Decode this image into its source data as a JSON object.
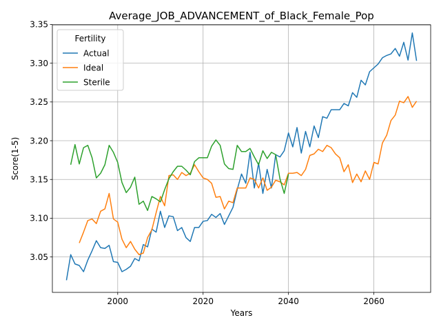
{
  "chart_data": {
    "type": "line",
    "title": "Average_JOB_ADVANCEMENT_of_Black_Female_Pop",
    "xlabel": "Years",
    "ylabel": "Score(1-5)",
    "xlim": [
      1984.7,
      2073.3
    ],
    "ylim": [
      3.0043,
      3.3495
    ],
    "xticks": [
      2000,
      2020,
      2040,
      2060
    ],
    "yticks": [
      3.05,
      3.1,
      3.15,
      3.2,
      3.25,
      3.3,
      3.35
    ],
    "ytick_labels": [
      "3.05",
      "3.10",
      "3.15",
      "3.20",
      "3.25",
      "3.30",
      "3.35"
    ],
    "grid": true,
    "legend": {
      "title": "Fertility",
      "placement": "upper-left"
    },
    "series": [
      {
        "name": "Actual",
        "color": "#1f77b4",
        "x": [
          1988,
          1989,
          1990,
          1991,
          1992,
          1993,
          1994,
          1995,
          1996,
          1997,
          1998,
          1999,
          2000,
          2001,
          2002,
          2003,
          2004,
          2005,
          2006,
          2007,
          2008,
          2009,
          2010,
          2011,
          2012,
          2013,
          2014,
          2015,
          2016,
          2017,
          2018,
          2019,
          2020,
          2021,
          2022,
          2023,
          2024,
          2025,
          2026,
          2027,
          2028,
          2029,
          2030,
          2031,
          2032,
          2033,
          2034,
          2035,
          2036,
          2037,
          2038,
          2039,
          2040,
          2041,
          2042,
          2043,
          2044,
          2045,
          2046,
          2047,
          2048,
          2049,
          2050,
          2051,
          2052,
          2053,
          2054,
          2055,
          2056,
          2057,
          2058,
          2059,
          2060,
          2061,
          2062,
          2063,
          2064,
          2065,
          2066,
          2067,
          2068,
          2069,
          2070
        ],
        "values": [
          3.02,
          3.053,
          3.041,
          3.039,
          3.031,
          3.046,
          3.058,
          3.071,
          3.062,
          3.061,
          3.065,
          3.044,
          3.043,
          3.031,
          3.034,
          3.038,
          3.048,
          3.045,
          3.066,
          3.063,
          3.086,
          3.082,
          3.109,
          3.088,
          3.103,
          3.102,
          3.084,
          3.088,
          3.075,
          3.07,
          3.088,
          3.088,
          3.096,
          3.097,
          3.105,
          3.101,
          3.106,
          3.092,
          3.103,
          3.114,
          3.137,
          3.157,
          3.145,
          3.185,
          3.139,
          3.171,
          3.132,
          3.163,
          3.139,
          3.182,
          3.179,
          3.187,
          3.21,
          3.192,
          3.217,
          3.184,
          3.212,
          3.192,
          3.219,
          3.204,
          3.231,
          3.229,
          3.24,
          3.24,
          3.24,
          3.248,
          3.245,
          3.262,
          3.256,
          3.278,
          3.272,
          3.289,
          3.294,
          3.299,
          3.307,
          3.31,
          3.312,
          3.319,
          3.309,
          3.327,
          3.304,
          3.339,
          3.303
        ]
      },
      {
        "name": "Ideal",
        "color": "#ff7f0e",
        "x": [
          1991,
          1992,
          1993,
          1994,
          1995,
          1996,
          1997,
          1998,
          1999,
          2000,
          2001,
          2002,
          2003,
          2004,
          2005,
          2006,
          2007,
          2008,
          2009,
          2010,
          2011,
          2012,
          2013,
          2014,
          2015,
          2016,
          2017,
          2018,
          2019,
          2020,
          2021,
          2022,
          2023,
          2024,
          2025,
          2026,
          2027,
          2028,
          2029,
          2030,
          2031,
          2032,
          2033,
          2034,
          2035,
          2036,
          2037,
          2038,
          2039,
          2040,
          2041,
          2042,
          2043,
          2044,
          2045,
          2046,
          2047,
          2048,
          2049,
          2050,
          2051,
          2052,
          2053,
          2054,
          2055,
          2056,
          2057,
          2058,
          2059,
          2060,
          2061,
          2062,
          2063,
          2064,
          2065,
          2066,
          2067,
          2068,
          2069,
          2070
        ],
        "values": [
          3.068,
          3.082,
          3.097,
          3.099,
          3.093,
          3.109,
          3.112,
          3.132,
          3.099,
          3.095,
          3.073,
          3.062,
          3.07,
          3.06,
          3.053,
          3.055,
          3.075,
          3.085,
          3.107,
          3.128,
          3.116,
          3.155,
          3.156,
          3.15,
          3.159,
          3.155,
          3.158,
          3.169,
          3.16,
          3.152,
          3.15,
          3.145,
          3.127,
          3.128,
          3.112,
          3.122,
          3.12,
          3.139,
          3.139,
          3.139,
          3.152,
          3.15,
          3.139,
          3.152,
          3.136,
          3.14,
          3.149,
          3.147,
          3.143,
          3.158,
          3.158,
          3.159,
          3.155,
          3.163,
          3.181,
          3.183,
          3.189,
          3.186,
          3.194,
          3.191,
          3.183,
          3.178,
          3.16,
          3.169,
          3.146,
          3.157,
          3.147,
          3.161,
          3.15,
          3.172,
          3.17,
          3.197,
          3.207,
          3.226,
          3.233,
          3.251,
          3.249,
          3.257,
          3.243,
          3.251
        ]
      },
      {
        "name": "Sterile",
        "color": "#2ca02c",
        "x": [
          1989,
          1990,
          1991,
          1992,
          1993,
          1994,
          1995,
          1996,
          1997,
          1998,
          1999,
          2000,
          2001,
          2002,
          2003,
          2004,
          2005,
          2006,
          2007,
          2008,
          2009,
          2010,
          2011,
          2012,
          2013,
          2014,
          2015,
          2016,
          2017,
          2018,
          2019,
          2020,
          2021,
          2022,
          2023,
          2024,
          2025,
          2026,
          2027,
          2028,
          2029,
          2030,
          2031,
          2032,
          2033,
          2034,
          2035,
          2036,
          2037,
          2038,
          2039,
          2040
        ],
        "values": [
          3.169,
          3.195,
          3.17,
          3.191,
          3.194,
          3.178,
          3.152,
          3.158,
          3.169,
          3.194,
          3.185,
          3.172,
          3.146,
          3.133,
          3.14,
          3.153,
          3.118,
          3.122,
          3.11,
          3.128,
          3.125,
          3.121,
          3.137,
          3.151,
          3.16,
          3.167,
          3.167,
          3.162,
          3.156,
          3.173,
          3.178,
          3.178,
          3.178,
          3.193,
          3.201,
          3.194,
          3.17,
          3.164,
          3.163,
          3.194,
          3.186,
          3.186,
          3.19,
          3.179,
          3.169,
          3.187,
          3.177,
          3.185,
          3.182,
          3.151,
          3.132,
          3.157
        ]
      }
    ]
  }
}
